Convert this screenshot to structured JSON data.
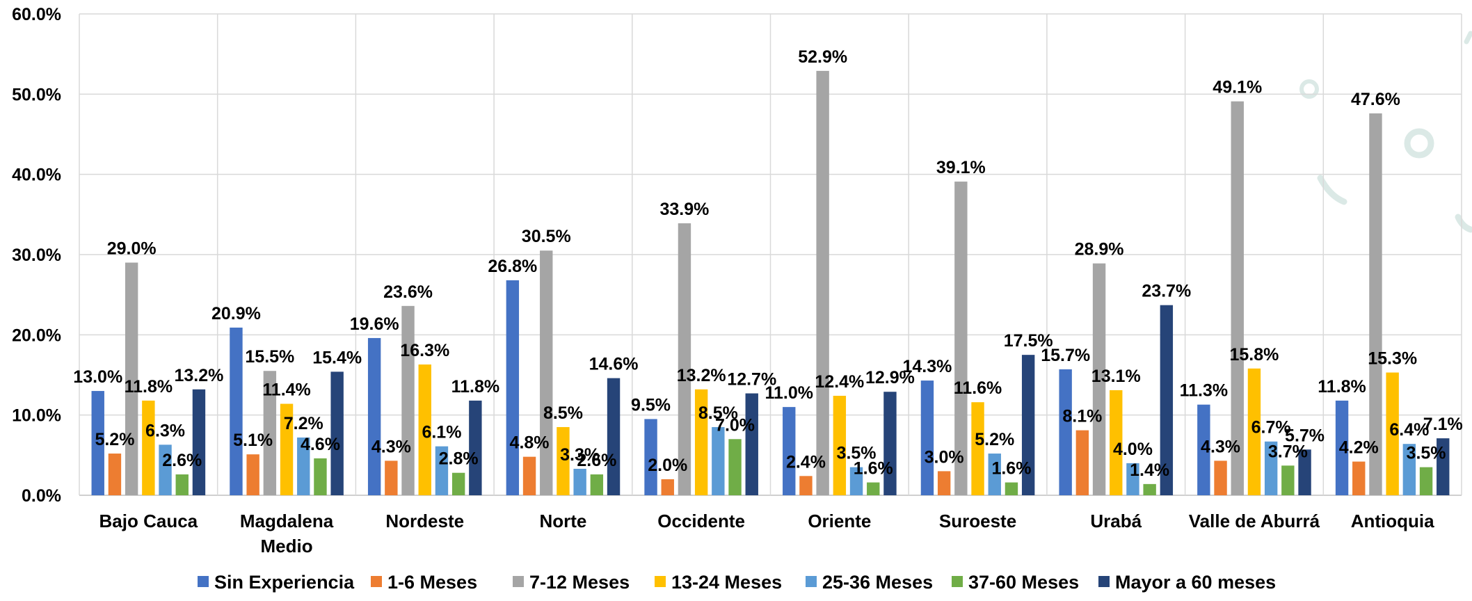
{
  "chart_data": {
    "type": "bar",
    "title": "",
    "xlabel": "",
    "ylabel": "",
    "ylim": [
      0,
      60
    ],
    "yticks": [
      0,
      10,
      20,
      30,
      40,
      50,
      60
    ],
    "ytick_labels": [
      "0.0%",
      "10.0%",
      "20.0%",
      "30.0%",
      "40.0%",
      "50.0%",
      "60.0%"
    ],
    "grid": true,
    "legend_position": "bottom",
    "categories": [
      [
        "Bajo Cauca"
      ],
      [
        "Magdalena",
        "Medio"
      ],
      [
        "Nordeste"
      ],
      [
        "Norte"
      ],
      [
        "Occidente"
      ],
      [
        "Oriente"
      ],
      [
        "Suroeste"
      ],
      [
        "Urabá"
      ],
      [
        "Valle de Aburrá"
      ],
      [
        "Antioquia"
      ]
    ],
    "series": [
      {
        "name": "Sin Experiencia",
        "color": "#4472C4",
        "values": [
          13.0,
          20.9,
          19.6,
          26.8,
          9.5,
          11.0,
          14.3,
          15.7,
          11.3,
          11.8
        ],
        "labels": [
          "13.0%",
          "20.9%",
          "19.6%",
          "26.8%",
          "9.5%",
          "11.0%",
          "14.3%",
          "15.7%",
          "11.3%",
          "11.8%"
        ]
      },
      {
        "name": "1-6 Meses",
        "color": "#ED7D31",
        "values": [
          5.2,
          5.1,
          4.3,
          4.8,
          2.0,
          2.4,
          3.0,
          8.1,
          4.3,
          4.2
        ],
        "labels": [
          "5.2%",
          "5.1%",
          "4.3%",
          "4.8%",
          "2.0%",
          "2.4%",
          "3.0%",
          "8.1%",
          "4.3%",
          "4.2%"
        ]
      },
      {
        "name": "7-12 Meses",
        "color": "#A5A5A5",
        "values": [
          29.0,
          15.5,
          23.6,
          30.5,
          33.9,
          52.9,
          39.1,
          28.9,
          49.1,
          47.6
        ],
        "labels": [
          "29.0%",
          "15.5%",
          "23.6%",
          "30.5%",
          "33.9%",
          "52.9%",
          "39.1%",
          "28.9%",
          "49.1%",
          "47.6%"
        ]
      },
      {
        "name": "13-24 Meses",
        "color": "#FFC000",
        "values": [
          11.8,
          11.4,
          16.3,
          8.5,
          13.2,
          12.4,
          11.6,
          13.1,
          15.8,
          15.3
        ],
        "labels": [
          "11.8%",
          "11.4%",
          "16.3%",
          "8.5%",
          "13.2%",
          "12.4%",
          "11.6%",
          "13.1%",
          "15.8%",
          "15.3%"
        ]
      },
      {
        "name": "25-36 Meses",
        "color": "#5B9BD5",
        "values": [
          6.3,
          7.2,
          6.1,
          3.3,
          8.5,
          3.5,
          5.2,
          4.0,
          6.7,
          6.4
        ],
        "labels": [
          "6.3%",
          "7.2%",
          "6.1%",
          "3.3%",
          "8.5%",
          "3.5%",
          "5.2%",
          "4.0%",
          "6.7%",
          "6.4%"
        ]
      },
      {
        "name": "37-60 Meses",
        "color": "#70AD47",
        "values": [
          2.6,
          4.6,
          2.8,
          2.6,
          7.0,
          1.6,
          1.6,
          1.4,
          3.7,
          3.5
        ],
        "labels": [
          "2.6%",
          "4.6%",
          "2.8%",
          "2.6%",
          "7.0%",
          "1.6%",
          "1.6%",
          "1.4%",
          "3.7%",
          "3.5%"
        ]
      },
      {
        "name": "Mayor a 60 meses",
        "color": "#264478",
        "values": [
          13.2,
          15.4,
          11.8,
          14.6,
          12.7,
          12.9,
          17.5,
          23.7,
          5.7,
          7.1
        ],
        "labels": [
          "13.2%",
          "15.4%",
          "11.8%",
          "14.6%",
          "12.7%",
          "12.9%",
          "17.5%",
          "23.7%",
          "5.7%",
          "7.1%"
        ]
      }
    ]
  }
}
